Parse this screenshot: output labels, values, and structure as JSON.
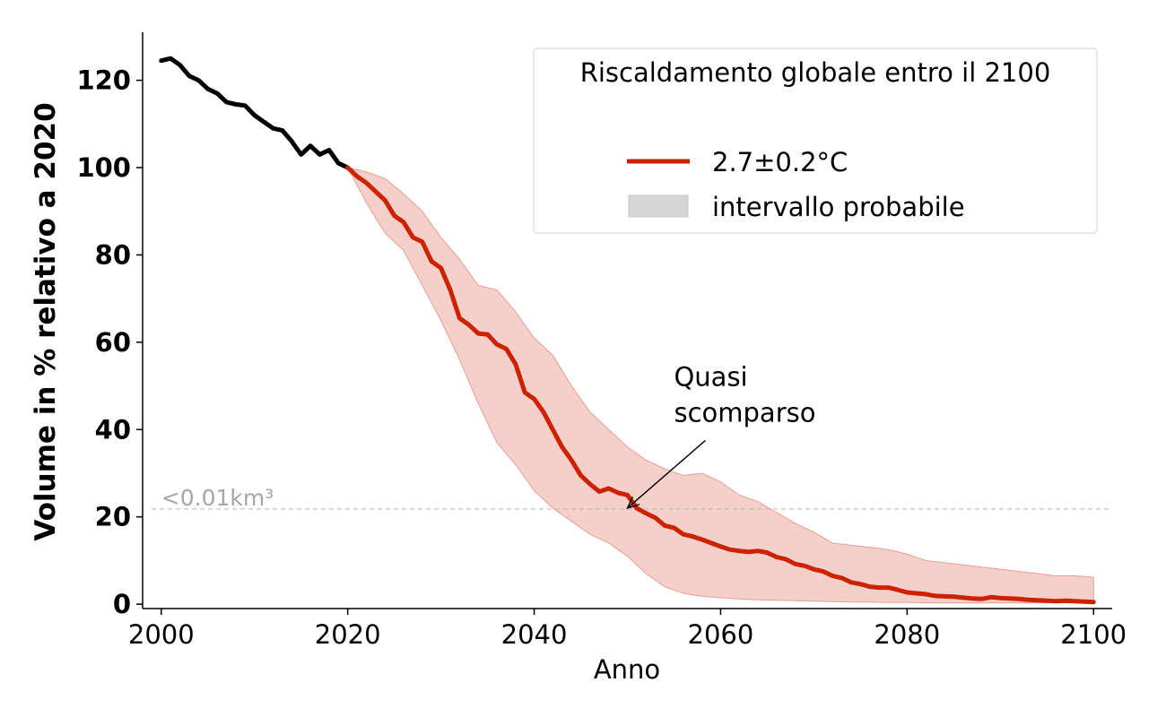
{
  "chart_data": {
    "type": "line",
    "xlabel": "Anno",
    "ylabel": "Volume in % relativo a 2020",
    "xlim": [
      1998,
      2102
    ],
    "ylim": [
      -1,
      131
    ],
    "x_ticks": [
      2000,
      2020,
      2040,
      2060,
      2080,
      2100
    ],
    "y_ticks": [
      0,
      20,
      40,
      60,
      80,
      100,
      120
    ],
    "grid": false,
    "legend": {
      "title": "Riscaldamento globale entro il 2100",
      "placement": "top-right",
      "entries": [
        {
          "label": "2.7±0.2°C",
          "kind": "line",
          "color": "#cc2200"
        },
        {
          "label": "intervallo probabile",
          "kind": "patch",
          "color": "#d6d6d6"
        }
      ]
    },
    "reference_line": {
      "y": 21.8,
      "label": "<0.01km³",
      "color": "#bbbbbb"
    },
    "annotation": {
      "lines": [
        "Quasi",
        "scomparso"
      ],
      "text_at": [
        2055,
        41
      ],
      "arrow_to": [
        2050,
        22
      ]
    },
    "series": [
      {
        "role": "historical",
        "color": "#000000",
        "x": [
          2000,
          2001,
          2002,
          2003,
          2004,
          2005,
          2006,
          2007,
          2008,
          2009,
          2010,
          2011,
          2012,
          2013,
          2014,
          2015,
          2016,
          2017,
          2018,
          2019,
          2020
        ],
        "y": [
          124.5,
          125,
          123.5,
          121,
          120,
          118,
          117,
          115,
          114.5,
          114.2,
          112,
          110.5,
          109,
          108.5,
          106,
          103,
          105,
          103,
          104,
          101,
          100
        ]
      },
      {
        "role": "projection",
        "name": "2.7±0.2°C",
        "color": "#cc2200",
        "x": [
          2020,
          2021,
          2022,
          2023,
          2024,
          2025,
          2026,
          2027,
          2028,
          2029,
          2030,
          2031,
          2032,
          2033,
          2034,
          2035,
          2036,
          2037,
          2038,
          2039,
          2040,
          2041,
          2042,
          2043,
          2044,
          2045,
          2046,
          2047,
          2048,
          2049,
          2050,
          2051,
          2052,
          2053,
          2054,
          2055,
          2056,
          2057,
          2058,
          2059,
          2060,
          2061,
          2062,
          2063,
          2064,
          2065,
          2066,
          2067,
          2068,
          2069,
          2070,
          2071,
          2072,
          2073,
          2074,
          2075,
          2076,
          2077,
          2078,
          2079,
          2080,
          2081,
          2082,
          2083,
          2084,
          2085,
          2086,
          2087,
          2088,
          2089,
          2090,
          2091,
          2092,
          2093,
          2094,
          2095,
          2096,
          2097,
          2098,
          2099,
          2100
        ],
        "y": [
          100,
          98,
          96.5,
          94.5,
          92.5,
          89,
          87.5,
          84,
          83,
          78.5,
          77,
          72,
          65.5,
          64,
          62,
          61.8,
          59.5,
          58.5,
          55,
          48.5,
          47,
          44,
          40,
          36,
          33,
          29.5,
          27.5,
          25.8,
          26.5,
          25.5,
          25,
          22,
          20.8,
          19.8,
          18,
          17.5,
          16,
          15.5,
          14.8,
          14,
          13.2,
          12.5,
          12.2,
          12,
          12.2,
          11.8,
          10.8,
          10.3,
          9.2,
          8.8,
          8,
          7.5,
          6.5,
          6,
          5,
          4.6,
          4,
          3.8,
          3.8,
          3.3,
          2.7,
          2.5,
          2.3,
          1.9,
          1.8,
          1.7,
          1.5,
          1.3,
          1.2,
          1.6,
          1.4,
          1.3,
          1.2,
          1,
          0.9,
          0.8,
          0.7,
          0.8,
          0.7,
          0.6,
          0.5
        ]
      }
    ],
    "band": {
      "name": "intervallo probabile",
      "color": "#f5d0cb",
      "edge_color": "#eb9c94",
      "x": [
        2020,
        2022,
        2024,
        2026,
        2028,
        2030,
        2032,
        2034,
        2036,
        2038,
        2040,
        2042,
        2044,
        2046,
        2048,
        2050,
        2052,
        2054,
        2056,
        2058,
        2060,
        2062,
        2064,
        2066,
        2068,
        2070,
        2072,
        2074,
        2076,
        2078,
        2080,
        2082,
        2084,
        2086,
        2088,
        2090,
        2092,
        2094,
        2096,
        2098,
        2100
      ],
      "upper": [
        100,
        99,
        97.5,
        94,
        90,
        84,
        79,
        73,
        72,
        67,
        61,
        57,
        50,
        44,
        40,
        36,
        33,
        31,
        29.5,
        30,
        28,
        25,
        23.5,
        21,
        18.5,
        16.5,
        14,
        13.5,
        13,
        12.5,
        11.5,
        10,
        9.5,
        9,
        8.5,
        8,
        7.5,
        7,
        6.5,
        6.5,
        6.2
      ],
      "lower": [
        100,
        92,
        85,
        81,
        73,
        65,
        56,
        46,
        37,
        32,
        26,
        22,
        19,
        16,
        14,
        11,
        7,
        4,
        2.5,
        1.8,
        1.5,
        1.2,
        1,
        0.9,
        0.8,
        0.7,
        0.6,
        0.5,
        0.5,
        0.4,
        0.4,
        0.3,
        0.3,
        0.3,
        0.3,
        0.3,
        0.3,
        0.3,
        0.3,
        0.3,
        0.3
      ]
    }
  }
}
